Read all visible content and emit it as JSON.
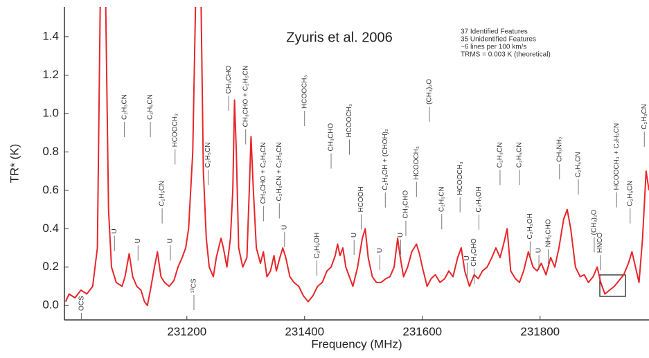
{
  "chart_data": {
    "type": "line",
    "title": "Zyuris et al. 2006",
    "info": [
      "37 Identified Features",
      "35 Unidentified Features",
      "~6 lines per 100 km/s",
      "TRMS = 0.003 K (theoretical)"
    ],
    "x_label": "Frequency (MHz)",
    "y_label": "TR* (K)",
    "xlim": [
      230992,
      231985
    ],
    "ylim": [
      -0.075,
      1.555
    ],
    "xticks": [
      231200,
      231400,
      231600,
      231800
    ],
    "yticks": [
      {
        "value": 0,
        "label": "0.0"
      },
      0.2,
      0.4,
      0.6,
      0.8,
      {
        "value": 1,
        "label": "1.0"
      },
      1.2,
      1.4
    ],
    "color": "#e8252a",
    "x": [
      230994,
      231000,
      231010,
      231020,
      231030,
      231040,
      231048,
      231053,
      231062,
      231067,
      231072,
      231080,
      231090,
      231095,
      231102,
      231108,
      231115,
      231122,
      231128,
      231133,
      231138,
      231145,
      231150,
      231156,
      231162,
      231170,
      231178,
      231185,
      231192,
      231198,
      231203,
      231210,
      231215,
      231224,
      231228,
      231233,
      231238,
      231245,
      231250,
      231258,
      231262,
      231268,
      231274,
      231278,
      231281,
      231284,
      231288,
      231295,
      231302,
      231306,
      231309,
      231313,
      231318,
      231325,
      231330,
      231336,
      231342,
      231348,
      231352,
      231358,
      231363,
      231368,
      231375,
      231382,
      231390,
      231398,
      231406,
      231414,
      231422,
      231430,
      231438,
      231445,
      231452,
      231456,
      231460,
      231465,
      231470,
      231476,
      231482,
      231490,
      231498,
      231503,
      231508,
      231515,
      231522,
      231530,
      231538,
      231545,
      231552,
      231558,
      231562,
      231568,
      231575,
      231582,
      231590,
      231595,
      231600,
      231608,
      231615,
      231622,
      231630,
      231638,
      231645,
      231652,
      231660,
      231666,
      231672,
      231680,
      231688,
      231695,
      231702,
      231710,
      231718,
      231725,
      231732,
      231738,
      231744,
      231750,
      231758,
      231765,
      231772,
      231780,
      231788,
      231795,
      231802,
      231810,
      231818,
      231825,
      231832,
      231840,
      231846,
      231852,
      231860,
      231868,
      231875,
      231882,
      231890,
      231897,
      231903,
      231910,
      231918,
      231926,
      231934,
      231942,
      231950,
      231956,
      231962,
      231968,
      231974,
      231980,
      231985
    ],
    "values": [
      0.02,
      0.06,
      0.04,
      0.08,
      0.06,
      0.1,
      0.3,
      1.6,
      1.6,
      0.5,
      0.2,
      0.12,
      0.1,
      0.15,
      0.27,
      0.15,
      0.1,
      0.08,
      0.02,
      0.0,
      0.08,
      0.2,
      0.28,
      0.15,
      0.12,
      0.1,
      0.13,
      0.2,
      0.25,
      0.3,
      0.4,
      0.8,
      1.6,
      1.6,
      0.7,
      0.35,
      0.2,
      0.15,
      0.25,
      0.35,
      0.3,
      0.2,
      0.35,
      0.6,
      1.07,
      0.8,
      0.3,
      0.2,
      0.25,
      0.6,
      0.88,
      0.6,
      0.3,
      0.22,
      0.28,
      0.15,
      0.18,
      0.26,
      0.18,
      0.25,
      0.3,
      0.25,
      0.15,
      0.12,
      0.1,
      0.05,
      0.02,
      0.05,
      0.1,
      0.12,
      0.18,
      0.2,
      0.26,
      0.32,
      0.26,
      0.3,
      0.2,
      0.15,
      0.1,
      0.2,
      0.35,
      0.4,
      0.25,
      0.15,
      0.12,
      0.12,
      0.14,
      0.15,
      0.2,
      0.35,
      0.26,
      0.15,
      0.2,
      0.28,
      0.32,
      0.27,
      0.2,
      0.1,
      0.14,
      0.16,
      0.12,
      0.14,
      0.18,
      0.15,
      0.25,
      0.3,
      0.18,
      0.1,
      0.16,
      0.14,
      0.18,
      0.2,
      0.25,
      0.3,
      0.25,
      0.32,
      0.4,
      0.18,
      0.14,
      0.12,
      0.18,
      0.28,
      0.2,
      0.18,
      0.22,
      0.16,
      0.25,
      0.2,
      0.3,
      0.45,
      0.5,
      0.4,
      0.2,
      0.15,
      0.16,
      0.12,
      0.15,
      0.2,
      0.12,
      0.06,
      0.08,
      0.1,
      0.13,
      0.16,
      0.22,
      0.28,
      0.2,
      0.12,
      0.35,
      0.7,
      0.6
    ],
    "annotations": [
      {
        "text": "OCS",
        "x": 231021,
        "y": 0.05
      },
      {
        "text": "U",
        "x": 231077,
        "y": 0.4
      },
      {
        "text": "C₂H₃CN",
        "x": 231094,
        "y": 1.1
      },
      {
        "text": "U",
        "x": 231117,
        "y": 0.35
      },
      {
        "text": "C₂H₅CN",
        "x": 231138,
        "y": 1.1
      },
      {
        "text": "C₂H₅CN",
        "x": 231158,
        "y": 0.65
      },
      {
        "text": "U",
        "x": 231172,
        "y": 0.35
      },
      {
        "text": "HCOOCH₃",
        "x": 231180,
        "y": 1.0
      },
      {
        "text": "¹³CS",
        "x": 231212,
        "y": 0.14
      },
      {
        "text": "C₂H₅CN",
        "x": 231236,
        "y": 0.85
      },
      {
        "text": "CH₃CHO",
        "x": 231271,
        "y": 1.25
      },
      {
        "text": "CH₃CHO + C₂H₅CN",
        "x": 231300,
        "y": 1.25
      },
      {
        "text": "CH₃CHO + C₂H₅CN",
        "x": 231330,
        "y": 0.85
      },
      {
        "text": "C₂H₅CN + C₂H₅CN",
        "x": 231357,
        "y": 0.85
      },
      {
        "text": "U",
        "x": 231366,
        "y": 0.42
      },
      {
        "text": "HCOOCH₃",
        "x": 231400,
        "y": 1.2
      },
      {
        "text": "C₂H₅OH",
        "x": 231421,
        "y": 0.38
      },
      {
        "text": "CH₃CHO",
        "x": 231445,
        "y": 0.95
      },
      {
        "text": "HCOOCH₃",
        "x": 231476,
        "y": 1.05
      },
      {
        "text": "U",
        "x": 231484,
        "y": 0.38
      },
      {
        "text": "HCOOH",
        "x": 231496,
        "y": 0.62
      },
      {
        "text": "U",
        "x": 231528,
        "y": 0.3
      },
      {
        "text": "C₂H₅OH + (CHOH)₂",
        "x": 231537,
        "y": 0.92
      },
      {
        "text": "U",
        "x": 231563,
        "y": 0.38
      },
      {
        "text": "CH₃CHO",
        "x": 231572,
        "y": 0.6
      },
      {
        "text": "HCOOCH₃",
        "x": 231590,
        "y": 0.83
      },
      {
        "text": "(CH₃)₂O",
        "x": 231612,
        "y": 1.18
      },
      {
        "text": "C₂H₃CN",
        "x": 231633,
        "y": 0.62
      },
      {
        "text": "HCOOCH₃",
        "x": 231664,
        "y": 0.75
      },
      {
        "text": "U",
        "x": 231676,
        "y": 0.26
      },
      {
        "text": "CH₃CHO",
        "x": 231688,
        "y": 0.35
      },
      {
        "text": "C₂H₅OH",
        "x": 231696,
        "y": 0.62
      },
      {
        "text": "C₂H₃CN",
        "x": 231732,
        "y": 0.85
      },
      {
        "text": "C₂H₅CN",
        "x": 231765,
        "y": 0.85
      },
      {
        "text": "C₂H₅OH",
        "x": 231783,
        "y": 0.48
      },
      {
        "text": "U",
        "x": 231798,
        "y": 0.3
      },
      {
        "text": "NH₂CHO",
        "x": 231814,
        "y": 0.45
      },
      {
        "text": "CH₃NH₂",
        "x": 231833,
        "y": 0.88
      },
      {
        "text": "C₂H₅CN",
        "x": 231865,
        "y": 0.8
      },
      {
        "text": "(CH₃)₂O",
        "x": 231892,
        "y": 0.5
      },
      {
        "text": "HNCO",
        "x": 231902,
        "y": 0.38
      },
      {
        "text": "HCOOCH₃ + C₂H₃CN",
        "x": 231930,
        "y": 0.95
      },
      {
        "text": "C₂H₅CN",
        "x": 231953,
        "y": 0.65
      },
      {
        "text": "C₂H₃CN",
        "x": 231977,
        "y": 1.05
      }
    ]
  }
}
